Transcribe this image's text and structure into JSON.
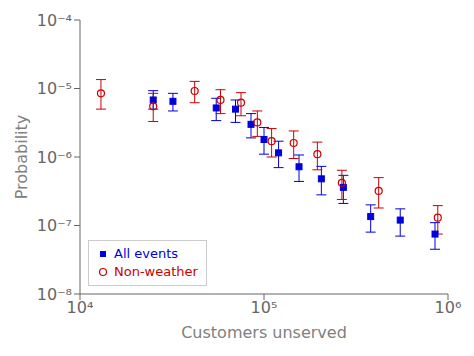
{
  "chart_data": {
    "type": "scatter",
    "xlabel": "Customers unserved",
    "ylabel": "Probability",
    "log": true,
    "grid": false,
    "legend": "lower left",
    "xlim": [
      10000,
      1000000
    ],
    "ylim": [
      1e-08,
      0.0001
    ],
    "xticks": [
      {
        "value": 10000,
        "label": "10⁴"
      },
      {
        "value": 100000,
        "label": "10⁵"
      },
      {
        "value": 1000000,
        "label": "10⁶"
      }
    ],
    "yticks": [
      {
        "value": 1e-08,
        "label": "10⁻⁸"
      },
      {
        "value": 1e-07,
        "label": "10⁻⁷"
      },
      {
        "value": 1e-06,
        "label": "10⁻⁶"
      },
      {
        "value": 1e-05,
        "label": "10⁻⁵"
      },
      {
        "value": 0.0001,
        "label": "10⁻⁴"
      }
    ],
    "series": [
      {
        "name": "All events",
        "color": "#0000dd",
        "marker": "square",
        "x": [
          25000,
          32000,
          55000,
          70000,
          85000,
          100000,
          120000,
          155000,
          205000,
          270000,
          380000,
          550000,
          850000
        ],
        "values": [
          6.8e-06,
          6.5e-06,
          5.2e-06,
          5e-06,
          3e-06,
          1.8e-06,
          1.15e-06,
          7.2e-07,
          4.8e-07,
          3.6e-07,
          1.35e-07,
          1.2e-07,
          7.5e-08
        ],
        "error_low": [
          1.8e-06,
          1.8e-06,
          1.8e-06,
          1.8e-06,
          1.1e-06,
          7e-07,
          4.5e-07,
          2.8e-07,
          2e-07,
          1.5e-07,
          5.5e-08,
          5e-08,
          3e-08
        ],
        "error_high": [
          2.5e-06,
          2e-06,
          2e-06,
          1.8e-06,
          1.3e-06,
          9e-07,
          5.5e-07,
          3.5e-07,
          2.5e-07,
          1.8e-07,
          6.5e-08,
          5.5e-08,
          3.5e-08
        ]
      },
      {
        "name": "Non-weather",
        "color": "#cc0000",
        "marker": "open_circle",
        "x": [
          13000,
          25000,
          42000,
          58000,
          75000,
          92000,
          110000,
          145000,
          195000,
          265000,
          420000,
          880000
        ],
        "values": [
          8.5e-06,
          5.5e-06,
          9.2e-06,
          6.8e-06,
          6.2e-06,
          3.2e-06,
          1.7e-06,
          1.6e-06,
          1.1e-06,
          4.2e-07,
          3.2e-07,
          1.3e-07
        ],
        "error_low": [
          3.5e-06,
          2.2e-06,
          3e-06,
          2.5e-06,
          2.2e-06,
          1.2e-06,
          7e-07,
          6.5e-07,
          4.5e-07,
          1.8e-07,
          1.4e-07,
          5.5e-08
        ],
        "error_high": [
          5e-06,
          3e-06,
          3.5e-06,
          2.8e-06,
          2.5e-06,
          1.5e-06,
          9e-07,
          8e-07,
          5.5e-07,
          2.2e-07,
          1.8e-07,
          6.5e-08
        ]
      }
    ]
  }
}
